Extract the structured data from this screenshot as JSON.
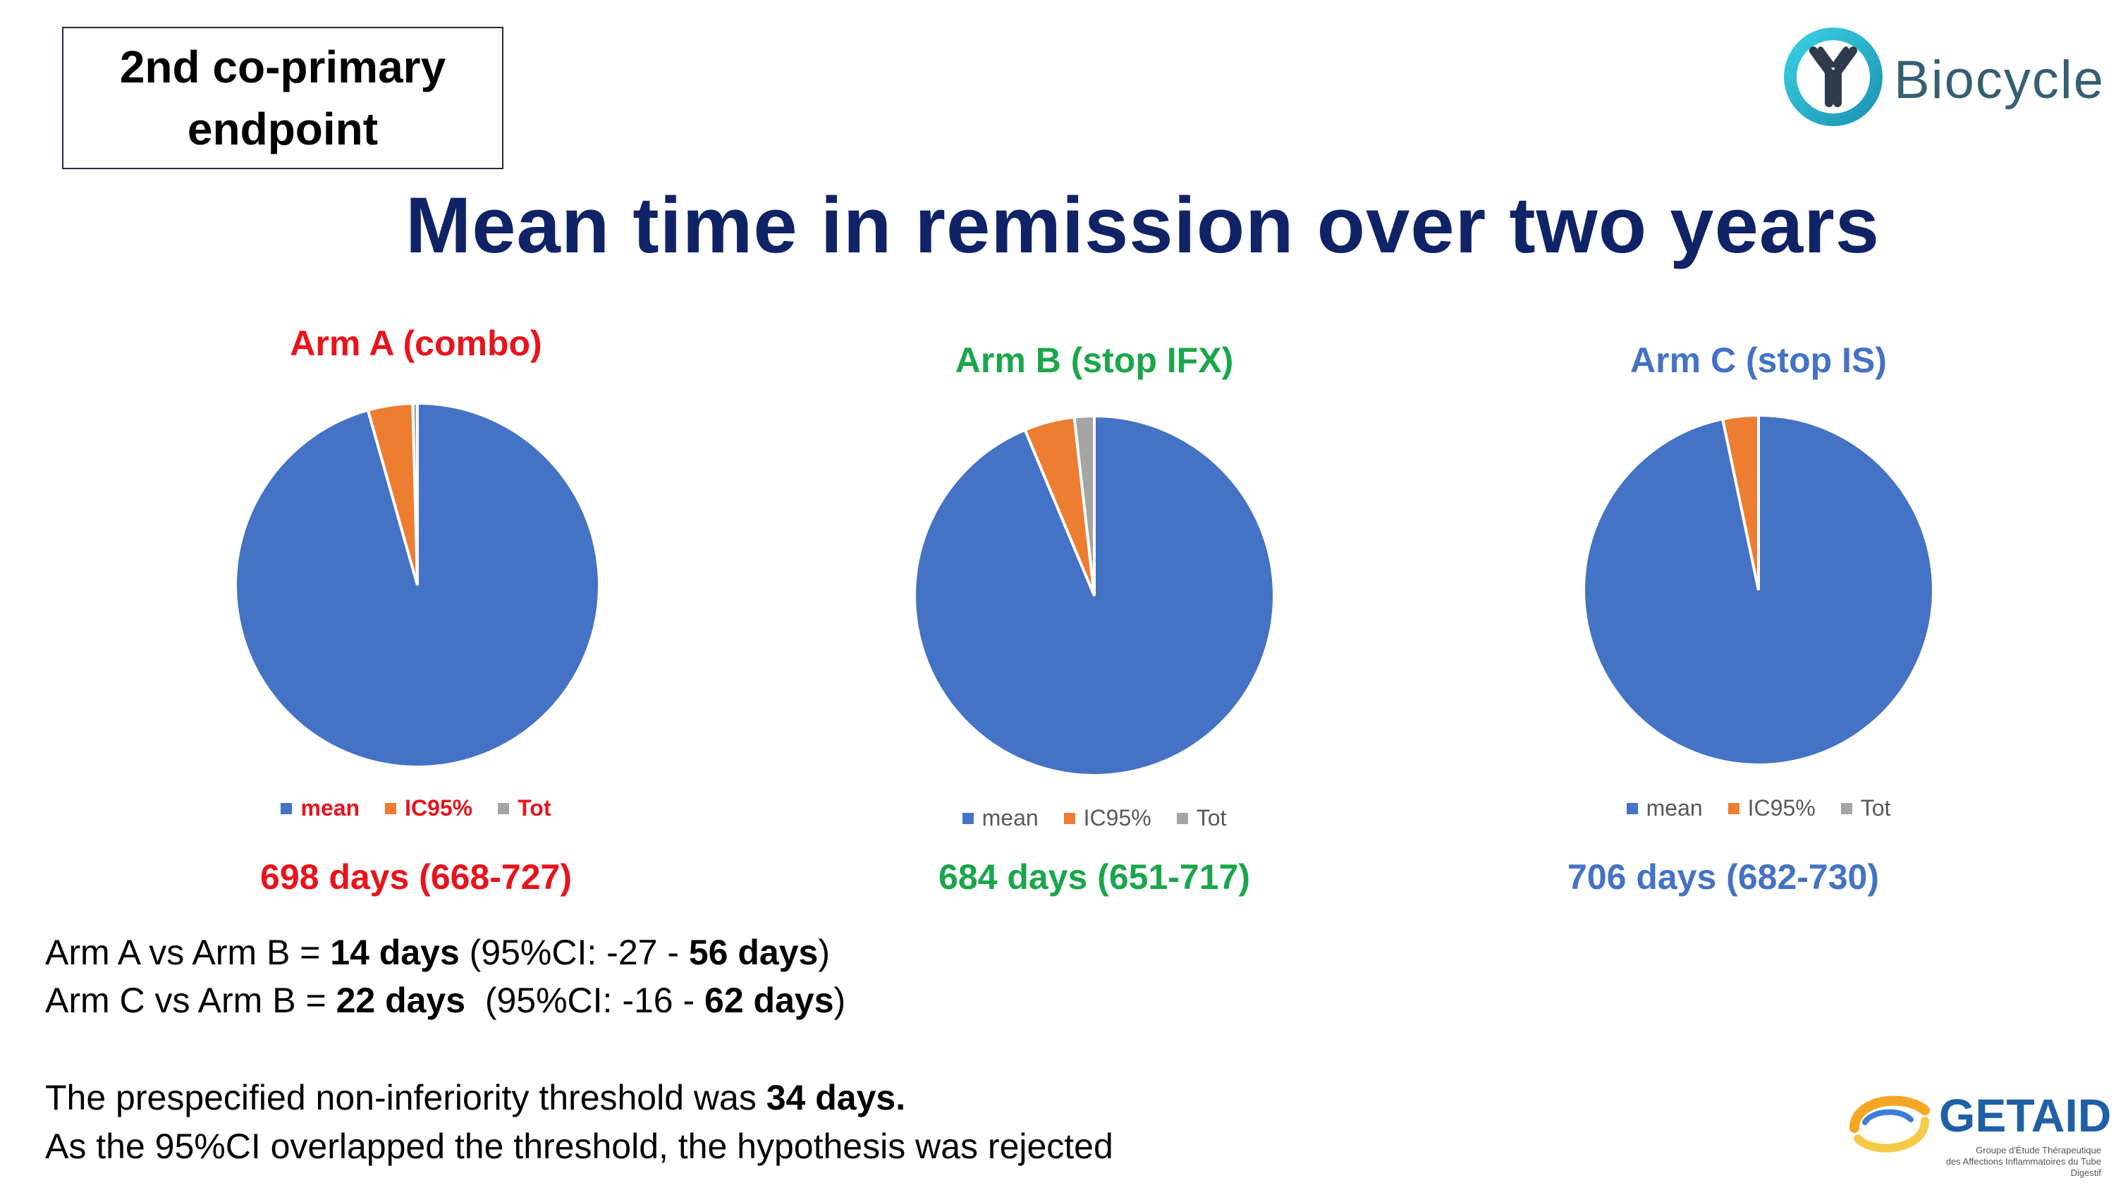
{
  "header": {
    "endpoint_label": "2nd co-primary endpoint",
    "title": "Mean time in remission over two years"
  },
  "logos": {
    "biocycle": "Biocycle",
    "getaid": "GETAID",
    "getaid_subtitle_1": "Groupe d'Étude Thérapeutique",
    "getaid_subtitle_2": "des Affections Inflammatoires du Tube Digestif"
  },
  "colors": {
    "mean": "#4472c4",
    "ic95": "#ed7d31",
    "tot": "#a5a5a5",
    "arm_a": "#e8141b",
    "arm_b": "#1aa64a",
    "arm_c": "#4472c4",
    "title": "#0f2366"
  },
  "chart_data": [
    {
      "type": "pie",
      "title": "Arm A (combo)",
      "categories": [
        "mean",
        "IC95%",
        "Tot"
      ],
      "values": [
        698,
        29,
        3
      ],
      "legend": [
        "mean",
        "IC95%",
        "Tot"
      ],
      "legend_placement": "bottom",
      "summary": "698 days (668-727)"
    },
    {
      "type": "pie",
      "title": "Arm B (stop IFX)",
      "categories": [
        "mean",
        "IC95%",
        "Tot"
      ],
      "values": [
        684,
        33,
        13
      ],
      "legend": [
        "mean",
        "IC95%",
        "Tot"
      ],
      "legend_placement": "bottom",
      "summary": "684 days (651-717)"
    },
    {
      "type": "pie",
      "title": "Arm C (stop IS)",
      "categories": [
        "mean",
        "IC95%",
        "Tot"
      ],
      "values": [
        706,
        24,
        0
      ],
      "legend": [
        "mean",
        "IC95%",
        "Tot"
      ],
      "legend_placement": "bottom",
      "summary": "706 days (682-730)"
    }
  ],
  "comparisons": {
    "line1_prefix": "Arm A vs Arm B = ",
    "line1_days": "14 days",
    "line1_ci_prefix": " (95%CI: -27 - ",
    "line1_ci_upper": "56 days",
    "line1_suffix": ")",
    "line2_prefix": "Arm C vs Arm B = ",
    "line2_days": "22 days",
    "line2_ci_prefix": "  (95%CI: -16 - ",
    "line2_ci_upper": "62 days",
    "line2_suffix": ")",
    "line3_prefix": "The prespecified non-inferiority threshold was ",
    "line3_bold": "34 days.",
    "line4": "As the 95%CI overlapped the threshold, the hypothesis was rejected"
  }
}
